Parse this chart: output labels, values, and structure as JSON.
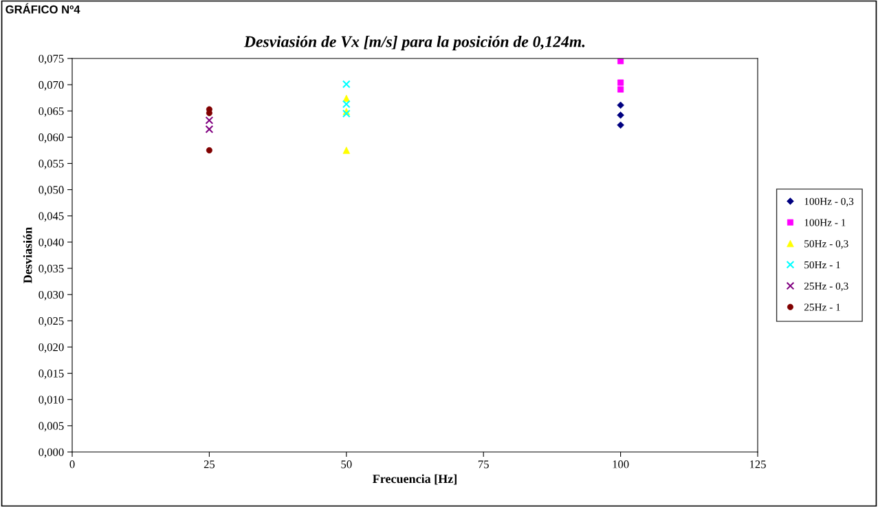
{
  "chart_data": {
    "type": "scatter",
    "title": "Desviasión de Vx [m/s] para la posición de 0,124m.",
    "xlabel": "Frecuencia [Hz]",
    "ylabel": "Desviasión",
    "annotations": [
      "GRÁFICO Nº4"
    ],
    "xlim": [
      0,
      125
    ],
    "xticks": [
      0,
      25,
      50,
      75,
      100,
      125
    ],
    "ylim": [
      0,
      0.075
    ],
    "yticks": [
      {
        "value": 0,
        "label": "0,000"
      },
      {
        "value": 0.005,
        "label": "0,005"
      },
      {
        "value": 0.01,
        "label": "0,010"
      },
      {
        "value": 0.015,
        "label": "0,015"
      },
      {
        "value": 0.02,
        "label": "0,020"
      },
      {
        "value": 0.025,
        "label": "0,025"
      },
      {
        "value": 0.03,
        "label": "0,030"
      },
      {
        "value": 0.035,
        "label": "0,035"
      },
      {
        "value": 0.04,
        "label": "0,040"
      },
      {
        "value": 0.045,
        "label": "0,045"
      },
      {
        "value": 0.05,
        "label": "0,050"
      },
      {
        "value": 0.055,
        "label": "0,055"
      },
      {
        "value": 0.06,
        "label": "0,060"
      },
      {
        "value": 0.065,
        "label": "0,065"
      },
      {
        "value": 0.07,
        "label": "0,070"
      },
      {
        "value": 0.075,
        "label": "0,075"
      }
    ],
    "grid": false,
    "legend": "right",
    "series": [
      {
        "name": "100Hz - 0,3",
        "color": "#000080",
        "marker": "diamond",
        "x": [
          100,
          100,
          100
        ],
        "values": [
          0.0661,
          0.0642,
          0.0623
        ]
      },
      {
        "name": "100Hz - 1",
        "color": "#ff00ff",
        "marker": "square",
        "x": [
          100,
          100,
          100
        ],
        "values": [
          0.0745,
          0.0704,
          0.0691
        ]
      },
      {
        "name": "50Hz - 0,3",
        "color": "#ffff00",
        "marker": "triangle",
        "x": [
          50,
          50,
          50
        ],
        "values": [
          0.0674,
          0.0649,
          0.0575
        ]
      },
      {
        "name": "50Hz - 1",
        "color": "#00ffff",
        "marker": "cross",
        "x": [
          50,
          50,
          50
        ],
        "values": [
          0.0701,
          0.0663,
          0.0645
        ]
      },
      {
        "name": "25Hz - 0,3",
        "color": "#800080",
        "marker": "cross",
        "x": [
          25,
          25
        ],
        "values": [
          0.0632,
          0.0615
        ]
      },
      {
        "name": "25Hz - 1",
        "color": "#800000",
        "marker": "circle",
        "x": [
          25,
          25,
          25
        ],
        "values": [
          0.0653,
          0.0646,
          0.0575
        ]
      }
    ]
  }
}
